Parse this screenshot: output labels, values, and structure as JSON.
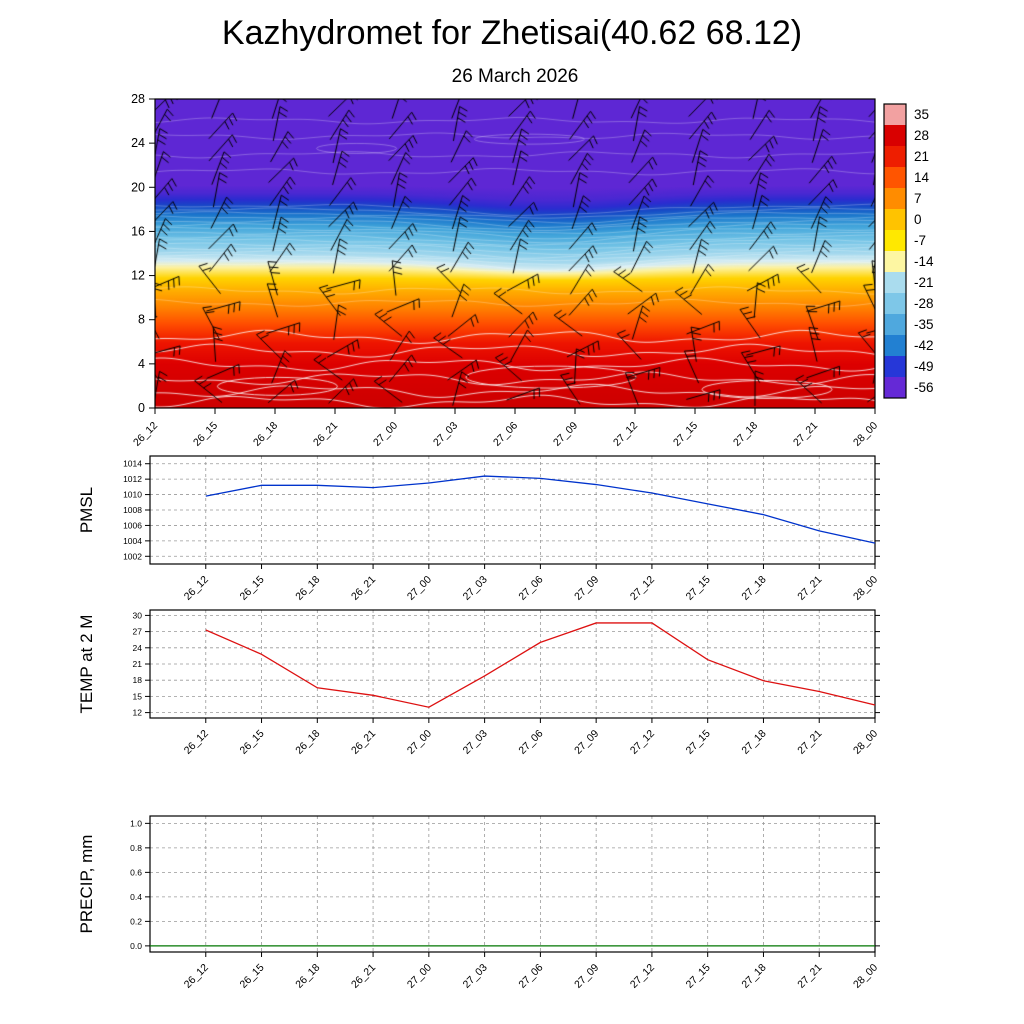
{
  "page": {
    "title": "Kazhydromet for Zhetisai(40.62 68.12)",
    "subtitle": "26 March 2026"
  },
  "time_labels": [
    "26_12",
    "26_15",
    "26_18",
    "26_21",
    "27_00",
    "27_03",
    "27_06",
    "27_09",
    "27_12",
    "27_15",
    "27_18",
    "27_21",
    "28_00"
  ],
  "chart_data": [
    {
      "id": "cross_section",
      "type": "heatmap",
      "title": "Time-height temperature cross-section with wind barbs",
      "x": [
        "26_12",
        "26_15",
        "26_18",
        "26_21",
        "27_00",
        "27_03",
        "27_06",
        "27_09",
        "27_12",
        "27_15",
        "27_18",
        "27_21",
        "28_00"
      ],
      "ylim": [
        0,
        28
      ],
      "yticks": [
        0,
        4,
        8,
        12,
        16,
        20,
        24,
        28
      ],
      "colorbar_ticks": [
        "35",
        "28",
        "21",
        "14",
        "7",
        "0",
        "-7",
        "-14",
        "-21",
        "-28",
        "-35",
        "-42",
        "-49",
        "-56"
      ],
      "colorbar_colors": [
        "#f2a1a1",
        "#d90000",
        "#ee1e00",
        "#ff5500",
        "#ff8c00",
        "#ffc300",
        "#ffe800",
        "#fdf6a2",
        "#aadcee",
        "#7ec7e8",
        "#4fa8de",
        "#2280d2",
        "#2637d8",
        "#6529d6"
      ],
      "gradient_stops": [
        [
          0.0,
          "#5e27d4"
        ],
        [
          0.28,
          "#5e27d4"
        ],
        [
          0.305,
          "#4a28d2"
        ],
        [
          0.325,
          "#2b2cd0"
        ],
        [
          0.345,
          "#1747c6"
        ],
        [
          0.375,
          "#1b76cc"
        ],
        [
          0.41,
          "#3fa3da"
        ],
        [
          0.455,
          "#72c3e6"
        ],
        [
          0.5,
          "#a5d9ee"
        ],
        [
          0.525,
          "#d8edf2"
        ],
        [
          0.545,
          "#fdf2a0"
        ],
        [
          0.58,
          "#ffd300"
        ],
        [
          0.625,
          "#ffaa00"
        ],
        [
          0.68,
          "#ff7e00"
        ],
        [
          0.73,
          "#ff4c00"
        ],
        [
          0.79,
          "#ee1500"
        ],
        [
          0.86,
          "#dd0000"
        ],
        [
          1.0,
          "#cc0000"
        ]
      ]
    },
    {
      "id": "pmsl",
      "type": "line",
      "ylabel": "PMSL",
      "color": "#0033cc",
      "ylim": [
        1001,
        1015
      ],
      "yticks": [
        1002,
        1004,
        1006,
        1008,
        1010,
        1012,
        1014
      ],
      "ytick_labels": [
        "1002",
        "1004",
        "1006",
        "1008",
        "1010",
        "1012",
        "1014"
      ],
      "x": [
        "26_12",
        "26_15",
        "26_18",
        "26_21",
        "27_00",
        "27_03",
        "27_06",
        "27_09",
        "27_12",
        "27_15",
        "27_18",
        "27_21",
        "28_00"
      ],
      "values": [
        1009.8,
        1011.2,
        1011.2,
        1010.9,
        1011.5,
        1012.4,
        1012.1,
        1011.3,
        1010.2,
        1008.8,
        1007.4,
        1005.3,
        1003.7
      ]
    },
    {
      "id": "temp2m",
      "type": "line",
      "ylabel": "TEMP at 2 M",
      "color": "#dd1111",
      "ylim": [
        11,
        31
      ],
      "yticks": [
        12,
        15,
        18,
        21,
        24,
        27,
        30
      ],
      "ytick_labels": [
        "12",
        "15",
        "18",
        "21",
        "24",
        "27",
        "30"
      ],
      "x": [
        "26_12",
        "26_15",
        "26_18",
        "26_21",
        "27_00",
        "27_03",
        "27_06",
        "27_09",
        "27_12",
        "27_15",
        "27_18",
        "27_21",
        "28_00"
      ],
      "values": [
        27.3,
        22.8,
        16.6,
        15.2,
        13.0,
        18.8,
        25.0,
        28.6,
        28.6,
        21.8,
        17.9,
        15.9,
        13.4
      ]
    },
    {
      "id": "precip",
      "type": "line",
      "ylabel": "PRECIP, mm",
      "color": "#007700",
      "ylim": [
        -0.05,
        1.06
      ],
      "yticks": [
        0,
        0.2,
        0.4,
        0.6,
        0.8,
        1
      ],
      "ytick_labels": [
        "0.0",
        "0.2",
        "0.4",
        "0.6",
        "0.8",
        "1.0"
      ],
      "x": [
        "26_12",
        "26_15",
        "26_18",
        "26_21",
        "27_00",
        "27_03",
        "27_06",
        "27_09",
        "27_12",
        "27_15",
        "27_18",
        "27_21",
        "28_00"
      ],
      "values": [
        0,
        0,
        0,
        0,
        0,
        0,
        0,
        0,
        0,
        0,
        0,
        0,
        0
      ]
    }
  ]
}
